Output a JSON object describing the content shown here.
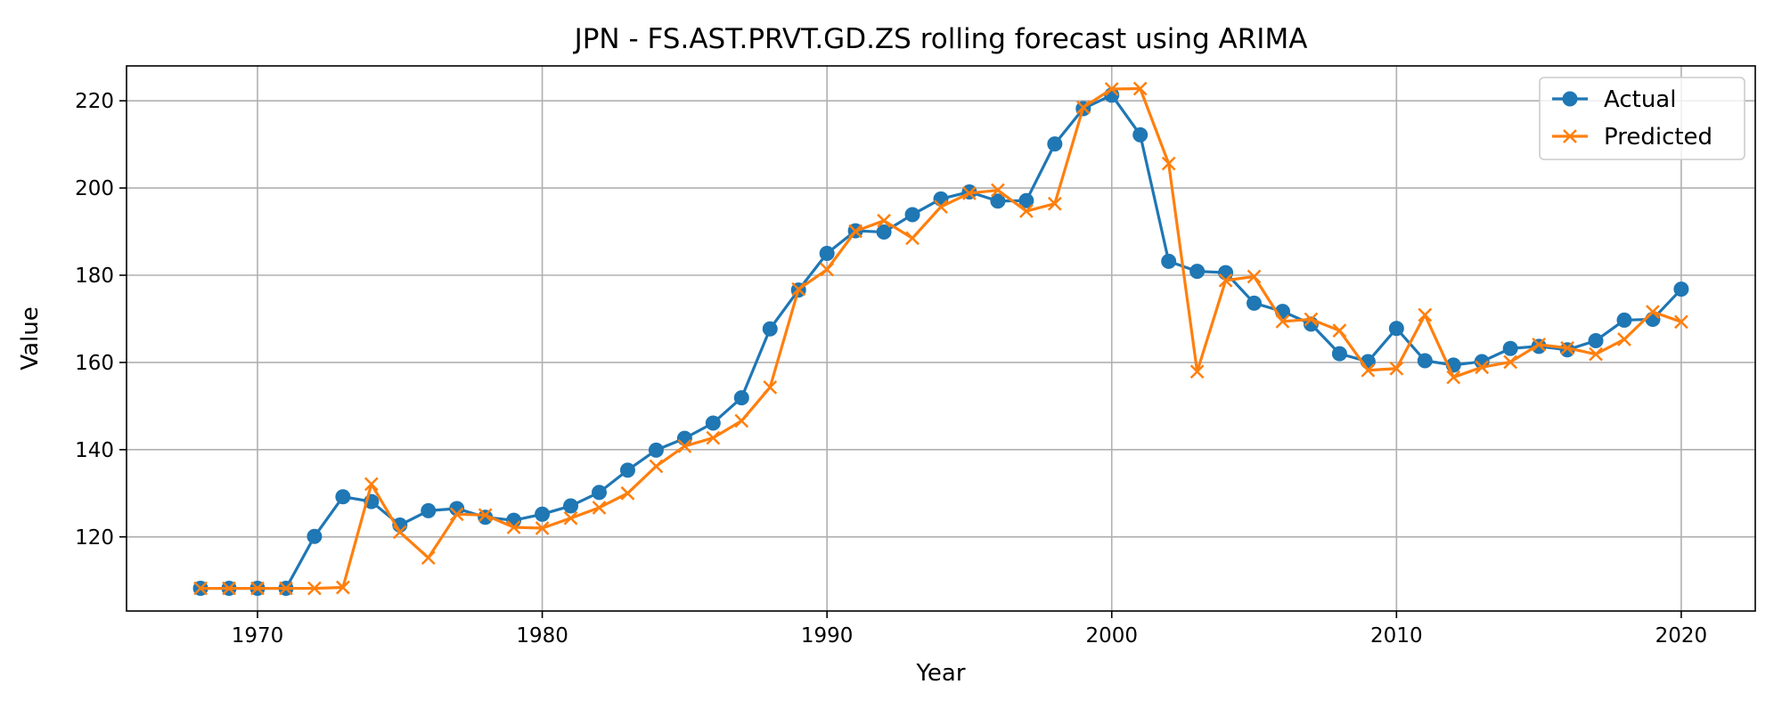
{
  "chart_data": {
    "type": "line",
    "title": "JPN - FS.AST.PRVT.GD.ZS rolling forecast using ARIMA",
    "xlabel": "Year",
    "ylabel": "Value",
    "xlim": [
      1965.4,
      2022.6
    ],
    "ylim": [
      103,
      228
    ],
    "xticks": [
      1970,
      1980,
      1990,
      2000,
      2010,
      2020
    ],
    "yticks": [
      120,
      140,
      160,
      180,
      200,
      220
    ],
    "grid": true,
    "legend_position": "top-right",
    "x": [
      1968,
      1969,
      1970,
      1971,
      1972,
      1973,
      1974,
      1975,
      1976,
      1977,
      1978,
      1979,
      1980,
      1981,
      1982,
      1983,
      1984,
      1985,
      1986,
      1987,
      1988,
      1989,
      1990,
      1991,
      1992,
      1993,
      1994,
      1995,
      1996,
      1997,
      1998,
      1999,
      2000,
      2001,
      2002,
      2003,
      2004,
      2005,
      2006,
      2007,
      2008,
      2009,
      2010,
      2011,
      2012,
      2013,
      2014,
      2015,
      2016,
      2017,
      2018,
      2019,
      2020
    ],
    "series": [
      {
        "name": "Actual",
        "color": "#1f77b4",
        "marker": "circle",
        "values": [
          108.2,
          108.2,
          108.2,
          108.2,
          120.1,
          129.2,
          128.1,
          122.7,
          126.0,
          126.5,
          124.5,
          123.8,
          125.2,
          127.1,
          130.2,
          135.3,
          139.9,
          142.6,
          146.1,
          151.9,
          167.7,
          176.6,
          185.0,
          190.2,
          189.9,
          193.9,
          197.5,
          199.1,
          197.0,
          197.1,
          210.1,
          218.2,
          221.3,
          212.2,
          183.2,
          180.9,
          180.6,
          173.6,
          171.7,
          168.8,
          162.0,
          160.2,
          167.8,
          160.4,
          159.4,
          160.2,
          163.2,
          163.7,
          162.9,
          165.0,
          169.7,
          169.9,
          176.8
        ]
      },
      {
        "name": "Predicted",
        "color": "#ff7f0e",
        "marker": "x",
        "values": [
          108.2,
          108.2,
          108.2,
          108.2,
          108.2,
          108.4,
          132.1,
          121.1,
          115.2,
          125.2,
          125.0,
          122.2,
          122.0,
          124.3,
          126.7,
          130.0,
          136.2,
          140.8,
          142.7,
          146.6,
          154.3,
          176.8,
          181.3,
          190.1,
          192.5,
          188.5,
          195.7,
          198.8,
          199.5,
          194.7,
          196.4,
          218.5,
          222.7,
          222.8,
          205.6,
          157.9,
          178.8,
          179.7,
          169.4,
          169.9,
          167.3,
          158.2,
          158.6,
          170.9,
          156.6,
          158.9,
          160.1,
          164.1,
          163.3,
          161.9,
          165.3,
          171.6,
          169.3
        ]
      }
    ]
  }
}
